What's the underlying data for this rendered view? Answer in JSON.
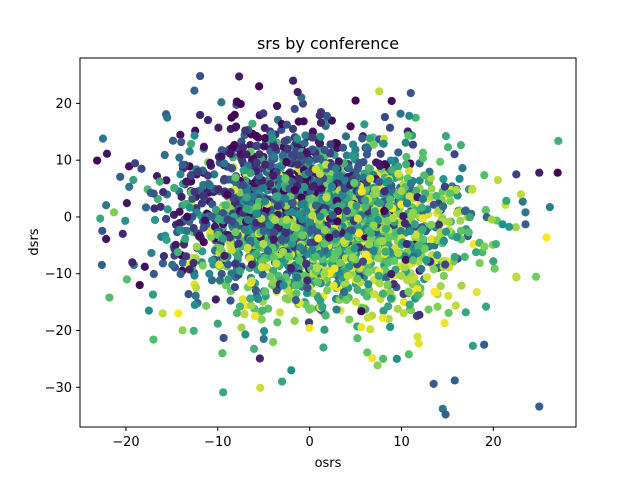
{
  "chart_data": {
    "type": "scatter",
    "title": "srs by conference",
    "xlabel": "osrs",
    "ylabel": "dsrs",
    "xlim": [
      -25,
      29
    ],
    "ylim": [
      -37,
      28
    ],
    "xticks": [
      -20,
      -10,
      0,
      10,
      20
    ],
    "yticks": [
      -30,
      -20,
      -10,
      0,
      10,
      20
    ],
    "x_tick_labels": [
      "−20",
      "−10",
      "0",
      "10",
      "20"
    ],
    "y_tick_labels": [
      "−30",
      "−20",
      "−10",
      "0",
      "10",
      "20"
    ],
    "grid": false,
    "legend": false,
    "colormap": "viridis",
    "palette": [
      "#440154",
      "#3b528b",
      "#21918c",
      "#5ec962",
      "#fde725"
    ],
    "point_count": 48,
    "points": [
      [
        -22.5,
        13.8,
        0.4
      ],
      [
        -22.8,
        -0.3,
        0.6
      ],
      [
        -21.8,
        -14.2,
        0.7
      ],
      [
        -21.3,
        0.8,
        0.8
      ],
      [
        -19.9,
        -11.0,
        0.7
      ],
      [
        -18.5,
        -12.0,
        0.0
      ],
      [
        -17.5,
        -16.5,
        0.5
      ],
      [
        -17.0,
        -21.6,
        0.7
      ],
      [
        -16.0,
        -17.0,
        0.9
      ],
      [
        -15.5,
        17.5,
        0.4
      ],
      [
        -14.3,
        -17.0,
        1.0
      ],
      [
        -12.5,
        -15.5,
        0.5
      ],
      [
        -10.0,
        -18.8,
        0.6
      ],
      [
        -9.5,
        -24.0,
        0.7
      ],
      [
        -8.5,
        17.5,
        0.0
      ],
      [
        -7.5,
        19.9,
        0.0
      ],
      [
        -7.0,
        -20.7,
        0.5
      ],
      [
        -5.5,
        23.0,
        0.0
      ],
      [
        -5.0,
        -21.5,
        0.4
      ],
      [
        -3.0,
        -29.0,
        0.6
      ],
      [
        -2.0,
        -27.0,
        0.5
      ],
      [
        -1.8,
        24.0,
        0.1
      ],
      [
        -1.3,
        22.0,
        0.1
      ],
      [
        1.5,
        -23.0,
        0.6
      ],
      [
        5.0,
        20.5,
        0.0
      ],
      [
        8.0,
        -25.0,
        0.7
      ],
      [
        9.5,
        -25.0,
        0.5
      ],
      [
        10.8,
        -24.2,
        0.7
      ],
      [
        13.5,
        -29.4,
        0.3
      ],
      [
        14.5,
        -33.8,
        0.4
      ],
      [
        14.8,
        -34.8,
        0.3
      ],
      [
        15.8,
        -28.8,
        0.3
      ],
      [
        17.0,
        -16.8,
        0.6
      ],
      [
        19.0,
        -22.5,
        0.3
      ],
      [
        19.2,
        -15.8,
        0.6
      ],
      [
        20.0,
        -7.8,
        0.6
      ],
      [
        20.5,
        6.5,
        0.9
      ],
      [
        21.0,
        -1.3,
        0.5
      ],
      [
        22.5,
        -10.5,
        0.9
      ],
      [
        23.0,
        4.0,
        0.9
      ],
      [
        23.2,
        2.7,
        0.4
      ],
      [
        23.5,
        0.8,
        0.4
      ],
      [
        23.5,
        -1.3,
        0.3
      ],
      [
        25.0,
        7.8,
        0.1
      ],
      [
        25.0,
        -33.4,
        0.3
      ],
      [
        25.8,
        -3.6,
        1.0
      ],
      [
        27.0,
        7.8,
        0.0
      ],
      [
        22.5,
        7.5,
        0.2
      ]
    ]
  }
}
